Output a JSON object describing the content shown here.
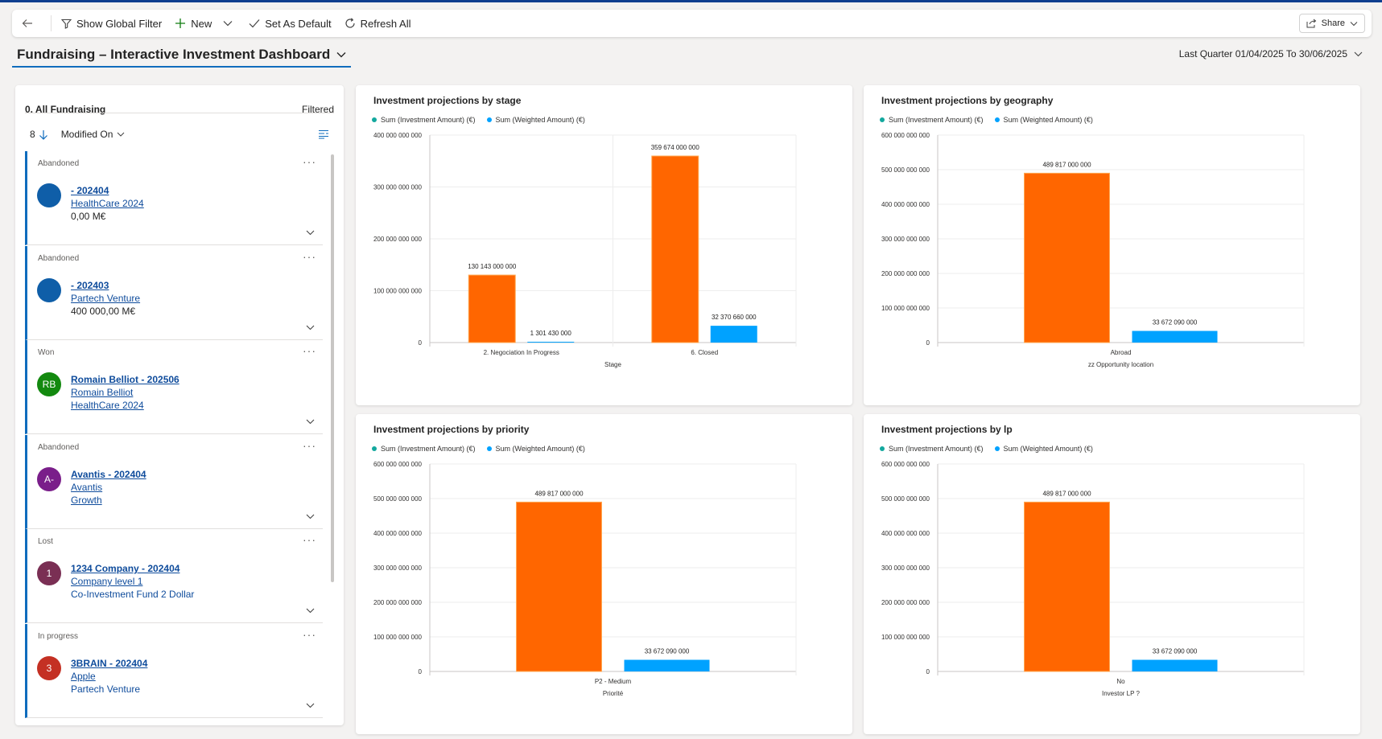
{
  "toolbar": {
    "show_global_filter": "Show Global Filter",
    "new": "New",
    "set_as_default": "Set As Default",
    "refresh_all": "Refresh All",
    "share": "Share"
  },
  "dashboard": {
    "title": "Fundraising – Interactive Investment Dashboard",
    "period": "Last Quarter 01/04/2025 To 30/06/2025"
  },
  "list_panel": {
    "title": "0. All Fundraising",
    "filtered": "Filtered",
    "count": "8",
    "sort_field": "Modified On",
    "items": [
      {
        "status": "Abandoned",
        "avatar": "",
        "avatar_color": "#0f5ea8",
        "line1": "- 202404",
        "line2": "HealthCare 2024",
        "line3": "0,00 M€",
        "line3_style": "plain"
      },
      {
        "status": "Abandoned",
        "avatar": "",
        "avatar_color": "#0f5ea8",
        "line1": "- 202403",
        "line2": "Partech Venture",
        "line3": "400 000,00 M€",
        "line3_style": "plain"
      },
      {
        "status": "Won",
        "avatar": "RB",
        "avatar_color": "#13890f",
        "line1": "Romain Belliot - 202506",
        "line2": "Romain Belliot",
        "line3": "HealthCare 2024",
        "line3_style": "link"
      },
      {
        "status": "Abandoned",
        "avatar": "A-",
        "avatar_color": "#7a1e8a",
        "line1": "Avantis - 202404",
        "line2": "Avantis",
        "line3": "Growth",
        "line3_style": "link"
      },
      {
        "status": "Lost",
        "avatar": "1",
        "avatar_color": "#7a2f54",
        "line1": "1234 Company - 202404",
        "line2": "Company level 1",
        "line3": "Co-Investment Fund 2 Dollar",
        "line3_style": "blue"
      },
      {
        "status": "In progress",
        "avatar": "3",
        "avatar_color": "#c43023",
        "line1": "3BRAIN - 202404",
        "line2": "Apple",
        "line3": "Partech Venture",
        "line3_style": "blue"
      }
    ]
  },
  "colors": {
    "investment": "#ff6600",
    "weighted": "#00a2ff",
    "legend_investment_dot": "#13a89e",
    "legend_weighted_dot": "#00a2ff"
  },
  "chart_data": [
    {
      "type": "bar",
      "title": "Investment projections by stage",
      "xlabel": "Stage",
      "ylabel": "",
      "categories": [
        "2. Negociation In Progress",
        "6. Closed"
      ],
      "series": [
        {
          "name": "Sum (Investment Amount) (€)",
          "values": [
            130143000000,
            359674000000
          ],
          "labels": [
            "130 143 000 000",
            "359 674 000 000"
          ]
        },
        {
          "name": "Sum (Weighted Amount) (€)",
          "values": [
            1301430000,
            32370660000
          ],
          "labels": [
            "1 301 430 000",
            "32 370 660 000"
          ]
        }
      ],
      "ylim": [
        0,
        400000000000
      ],
      "yticks": [
        "0",
        "100 000 000 000",
        "200 000 000 000",
        "300 000 000 000",
        "400 000 000 000"
      ]
    },
    {
      "type": "bar",
      "title": "Investment projections by geography",
      "xlabel": "zz Opportunity location",
      "ylabel": "",
      "categories": [
        "Abroad"
      ],
      "series": [
        {
          "name": "Sum (Investment Amount) (€)",
          "values": [
            489817000000
          ],
          "labels": [
            "489 817 000 000"
          ]
        },
        {
          "name": "Sum (Weighted Amount) (€)",
          "values": [
            33672090000
          ],
          "labels": [
            "33 672 090 000"
          ]
        }
      ],
      "ylim": [
        0,
        600000000000
      ],
      "yticks": [
        "0",
        "100 000 000 000",
        "200 000 000 000",
        "300 000 000 000",
        "400 000 000 000",
        "500 000 000 000",
        "600 000 000 000"
      ]
    },
    {
      "type": "bar",
      "title": "Investment projections by priority",
      "xlabel": "Priorité",
      "ylabel": "",
      "categories": [
        "P2 - Medium"
      ],
      "series": [
        {
          "name": "Sum (Investment Amount) (€)",
          "values": [
            489817000000
          ],
          "labels": [
            "489 817 000 000"
          ]
        },
        {
          "name": "Sum (Weighted Amount) (€)",
          "values": [
            33672090000
          ],
          "labels": [
            "33 672 090 000"
          ]
        }
      ],
      "ylim": [
        0,
        600000000000
      ],
      "yticks": [
        "0",
        "100 000 000 000",
        "200 000 000 000",
        "300 000 000 000",
        "400 000 000 000",
        "500 000 000 000",
        "600 000 000 000"
      ]
    },
    {
      "type": "bar",
      "title": "Investment projections by lp",
      "xlabel": "Investor LP ?",
      "ylabel": "",
      "categories": [
        "No"
      ],
      "series": [
        {
          "name": "Sum (Investment Amount) (€)",
          "values": [
            489817000000
          ],
          "labels": [
            "489 817 000 000"
          ]
        },
        {
          "name": "Sum (Weighted Amount) (€)",
          "values": [
            33672090000
          ],
          "labels": [
            "33 672 090 000"
          ]
        }
      ],
      "ylim": [
        0,
        600000000000
      ],
      "yticks": [
        "0",
        "100 000 000 000",
        "200 000 000 000",
        "300 000 000 000",
        "400 000 000 000",
        "500 000 000 000",
        "600 000 000 000"
      ]
    }
  ]
}
